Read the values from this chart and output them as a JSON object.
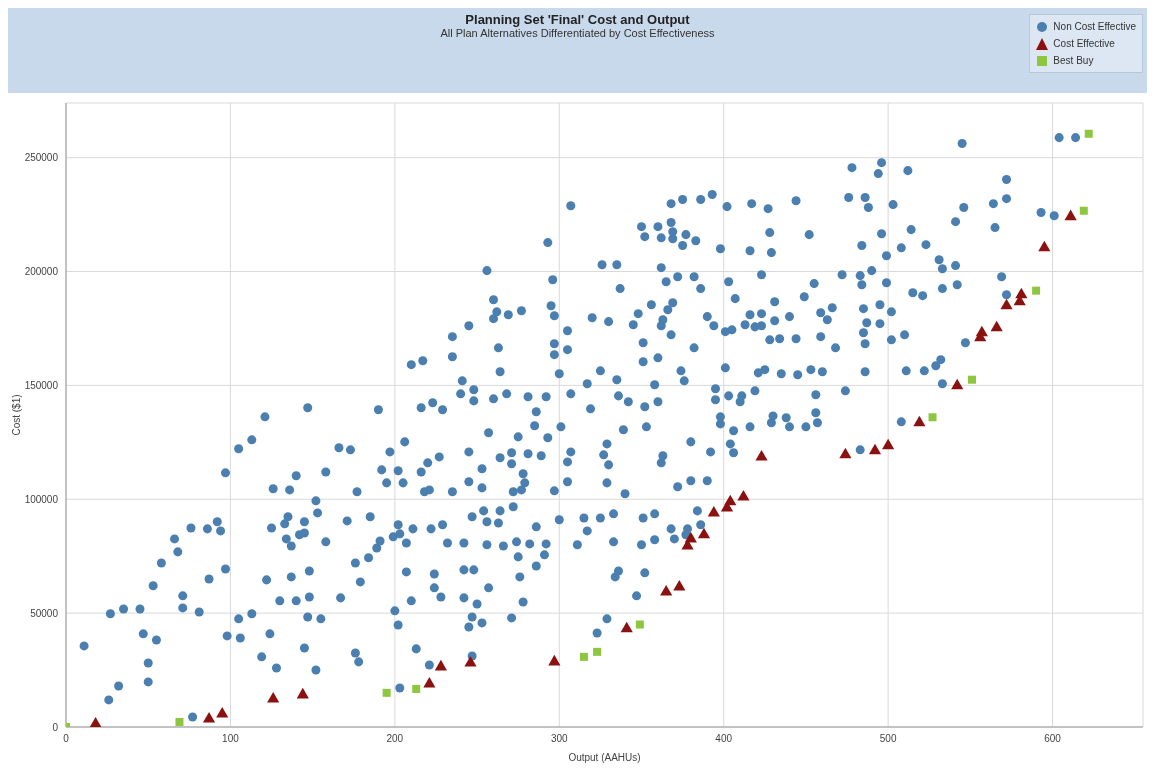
{
  "chart_data": {
    "type": "scatter",
    "title": "Planning Set 'Final' Cost and Output",
    "subtitle": "All Plan Alternatives Differentiated by Cost Effectiveness",
    "xlabel": "Output (AAHUs)",
    "ylabel": "Cost ($1)",
    "xlim": [
      0,
      655
    ],
    "xticks": [
      0,
      100,
      200,
      300,
      400,
      500,
      600
    ],
    "ylim": [
      0,
      274000
    ],
    "yticks": [
      0,
      50000,
      100000,
      150000,
      200000,
      250000
    ],
    "grid": true,
    "legend": "top right",
    "series": [
      {
        "name": "Non Cost Effective",
        "color": "#4a7fb0",
        "marker": "circle",
        "x": [
          11,
          27,
          26,
          32,
          35,
          45,
          47,
          50,
          50,
          55,
          53,
          58,
          66,
          68,
          71,
          71,
          76,
          77,
          81,
          86,
          87,
          92,
          94,
          97,
          97,
          98,
          105,
          105,
          106,
          113,
          113,
          119,
          121,
          122,
          124,
          125,
          126,
          128,
          130,
          133,
          135,
          134,
          136,
          137,
          137,
          140,
          140,
          142,
          145,
          145,
          145,
          147,
          147,
          148,
          148,
          152,
          152,
          153,
          155,
          158,
          158,
          167,
          166,
          171,
          173,
          176,
          176,
          177,
          178,
          179,
          184,
          185,
          189,
          191,
          190,
          192,
          195,
          197,
          199,
          200,
          202,
          202,
          203,
          202,
          206,
          205,
          203,
          207,
          207,
          210,
          211,
          213,
          216,
          218,
          220,
          221,
          221,
          222,
          224,
          224,
          227,
          228,
          229,
          232,
          235,
          242,
          242,
          242,
          245,
          245,
          245,
          247,
          247,
          247,
          248,
          250,
          253,
          253,
          253,
          254,
          256,
          256,
          257,
          257,
          263,
          264,
          264,
          266,
          271,
          271,
          271,
          272,
          272,
          274,
          275,
          275,
          276,
          277,
          278,
          278,
          279,
          281,
          282,
          285,
          286,
          286,
          289,
          291,
          292,
          293,
          297,
          300,
          301,
          305,
          305,
          307,
          311,
          315,
          317,
          323,
          325,
          327,
          329,
          329,
          329,
          330,
          333,
          333,
          334,
          336,
          339,
          340,
          347,
          350,
          351,
          352,
          353,
          358,
          358,
          362,
          363,
          368,
          370,
          372,
          377,
          378,
          380,
          380,
          384,
          386,
          390,
          392,
          398,
          404,
          406,
          406,
          416,
          210,
          217,
          235,
          235,
          241,
          240,
          245,
          248,
          248,
          216,
          223,
          229,
          256,
          260,
          260,
          262,
          263,
          264,
          260,
          268,
          269,
          277,
          281,
          286,
          292,
          293,
          296,
          295,
          297,
          297,
          297,
          300,
          305,
          305,
          307,
          307,
          317,
          320,
          319,
          325,
          326,
          330,
          335,
          335,
          337,
          336,
          342,
          345,
          348,
          351,
          351,
          352,
          350,
          352,
          356,
          358,
          360,
          362,
          362,
          360,
          360,
          362,
          363,
          365,
          366,
          368,
          368,
          368,
          369,
          369,
          369,
          372,
          375,
          374,
          376,
          375,
          377,
          382,
          382,
          383,
          386,
          386,
          390,
          393,
          394,
          395,
          395,
          398,
          401,
          401,
          402,
          403,
          403,
          405,
          407,
          410,
          411,
          413,
          416,
          416,
          417,
          419,
          419,
          421,
          423,
          423,
          423,
          425,
          427,
          428,
          428,
          429,
          444,
          452,
          455,
          449,
          431,
          431,
          434,
          444,
          440,
          459,
          463,
          466,
          459,
          468,
          472,
          476,
          478,
          484,
          486,
          488,
          483,
          484,
          490,
          485,
          487,
          485,
          486,
          495,
          495,
          494,
          496,
          496,
          499,
          499,
          502,
          502,
          503,
          510,
          508,
          512,
          514,
          515,
          521,
          523,
          531,
          533,
          533,
          541,
          542,
          541,
          546,
          545,
          564,
          565,
          572,
          572,
          569,
          572,
          593,
          601,
          604,
          614,
          547,
          533,
          511,
          522,
          529,
          532,
          508,
          486,
          474,
          456,
          456,
          453,
          460,
          445,
          435,
          430,
          429,
          438,
          440,
          450,
          457,
          483,
          398
        ],
        "values": [
          35600,
          49700,
          11900,
          18000,
          51800,
          51800,
          40900,
          28100,
          19800,
          38200,
          62000,
          72000,
          82600,
          76900,
          57600,
          52300,
          87400,
          4400,
          50500,
          87000,
          65000,
          90100,
          86100,
          69400,
          111600,
          40000,
          122200,
          47500,
          39100,
          126100,
          49700,
          30800,
          136200,
          64600,
          40900,
          87400,
          104600,
          25900,
          55400,
          89200,
          92300,
          82600,
          104100,
          79500,
          65900,
          55400,
          110300,
          84400,
          34700,
          85200,
          90100,
          140200,
          48300,
          57100,
          68500,
          99300,
          25000,
          94000,
          47500,
          112000,
          81300,
          56700,
          122600,
          90500,
          121700,
          32500,
          72000,
          103300,
          28600,
          63700,
          74300,
          92300,
          78600,
          81700,
          139300,
          112900,
          107200,
          120800,
          83500,
          51000,
          44800,
          88800,
          17100,
          112500,
          125200,
          107200,
          84800,
          80800,
          68100,
          55400,
          87000,
          34300,
          112000,
          103300,
          116000,
          104100,
          27200,
          87000,
          67200,
          61100,
          118600,
          57100,
          88800,
          80800,
          103300,
          69000,
          56700,
          80800,
          43900,
          120800,
          107700,
          48300,
          92300,
          31200,
          69000,
          54000,
          45700,
          113400,
          105000,
          94900,
          90100,
          80000,
          61100,
          129200,
          89600,
          118200,
          94900,
          79500,
          47900,
          120400,
          115600,
          103300,
          96700,
          81300,
          127400,
          74700,
          65900,
          104100,
          111200,
          54900,
          107200,
          120000,
          80400,
          132300,
          87900,
          70700,
          119100,
          75600,
          80400,
          127000,
          103700,
          91000,
          131800,
          116400,
          107700,
          120800,
          80000,
          91800,
          86100,
          41300,
          91800,
          119500,
          107200,
          124300,
          47500,
          115100,
          81300,
          93600,
          65900,
          68500,
          130500,
          102400,
          57600,
          80000,
          91800,
          67700,
          131800,
          93600,
          82200,
          116000,
          119100,
          87000,
          82600,
          105500,
          84400,
          87000,
          125200,
          108100,
          94900,
          88800,
          108100,
          120800,
          133100,
          124300,
          120400,
          130100,
          131800,
          159100,
          160800,
          171400,
          162600,
          152000,
          146300,
          176200,
          148100,
          143200,
          140200,
          142400,
          139300,
          200400,
          187600,
          179300,
          182300,
          166500,
          156000,
          144100,
          146300,
          181000,
          182800,
          145000,
          138400,
          145000,
          212700,
          196400,
          185000,
          180600,
          168300,
          163500,
          155100,
          174000,
          165700,
          228900,
          146300,
          150700,
          179700,
          139700,
          156400,
          203000,
          178000,
          152500,
          203000,
          192500,
          145400,
          142800,
          176600,
          181500,
          168700,
          160400,
          140600,
          219700,
          215300,
          185400,
          150300,
          219700,
          214800,
          201700,
          162100,
          142800,
          176200,
          178800,
          195500,
          183200,
          229800,
          221500,
          172200,
          214400,
          217500,
          186300,
          197700,
          211400,
          156400,
          152000,
          231600,
          216200,
          197700,
          166500,
          213500,
          192500,
          231600,
          180200,
          233800,
          176200,
          148500,
          143700,
          210000,
          173600,
          157700,
          228500,
          195500,
          145400,
          174400,
          188100,
          142800,
          145400,
          176600,
          209100,
          181000,
          229800,
          175700,
          147600,
          155500,
          181500,
          176200,
          198600,
          156900,
          227600,
          217100,
          170000,
          208300,
          231100,
          216200,
          194700,
          188900,
          186700,
          178400,
          170500,
          170500,
          180200,
          181900,
          178800,
          184100,
          171400,
          166500,
          198600,
          232500,
          245600,
          211400,
          232500,
          228100,
          198200,
          194200,
          200400,
          183700,
          177500,
          173100,
          168300,
          185400,
          177100,
          243000,
          247800,
          216600,
          206900,
          195100,
          182300,
          170000,
          229400,
          172200,
          210400,
          244300,
          218400,
          190700,
          189400,
          211800,
          205200,
          201200,
          192500,
          202600,
          194200,
          221900,
          228100,
          256200,
          229800,
          219300,
          240400,
          232000,
          197700,
          189800,
          225900,
          224500,
          258800,
          258800,
          168700,
          150700,
          156400,
          156400,
          158600,
          161300,
          134000,
          156000,
          147600,
          145900,
          138000,
          156900,
          156000,
          154700,
          155100,
          136600,
          133600,
          135800,
          131800,
          131800,
          133600,
          121700,
          136200
        ]
      },
      {
        "name": "Cost Effective",
        "color": "#8b1010",
        "marker": "triangle",
        "x": [
          18,
          87,
          95,
          126,
          144,
          221,
          228,
          246,
          297,
          341,
          365,
          373,
          378,
          380,
          388,
          394,
          402,
          404,
          412,
          423,
          474,
          492,
          500,
          519,
          542,
          556,
          557,
          566,
          572,
          580,
          581,
          595,
          611
        ],
        "values": [
          1300,
          3500,
          5700,
          12300,
          14100,
          18900,
          26400,
          28100,
          28600,
          43100,
          59300,
          61500,
          79500,
          82600,
          84400,
          94000,
          96200,
          98900,
          101000,
          118600,
          119500,
          121300,
          123500,
          133600,
          149800,
          170900,
          173100,
          175300,
          185000,
          186700,
          189800,
          210400,
          224100
        ]
      },
      {
        "name": "Best Buy",
        "color": "#8dc63f",
        "marker": "square",
        "x": [
          0,
          69,
          195,
          213,
          315,
          323,
          349,
          527,
          551,
          590,
          619,
          622
        ],
        "values": [
          0,
          2200,
          15000,
          16700,
          30800,
          33000,
          45000,
          136000,
          152500,
          191600,
          226700,
          260500
        ]
      }
    ]
  }
}
